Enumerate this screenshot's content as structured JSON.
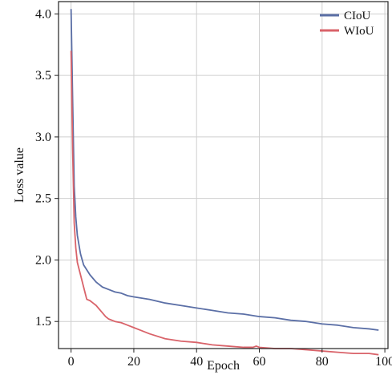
{
  "chart_data": {
    "type": "line",
    "title": "",
    "xlabel": "Epoch",
    "ylabel": "Loss value",
    "xlim": [
      -4,
      101
    ],
    "ylim": [
      1.28,
      4.1
    ],
    "xticks": [
      0,
      20,
      40,
      60,
      80,
      100
    ],
    "xtick_labels": [
      "0",
      "20",
      "40",
      "60",
      "80",
      "100"
    ],
    "yticks": [
      1.5,
      2.0,
      2.5,
      3.0,
      3.5,
      4.0
    ],
    "ytick_labels": [
      "1.5",
      "2.0",
      "2.5",
      "3.0",
      "3.5",
      "4.0"
    ],
    "grid": true,
    "legend": "top-right",
    "series": [
      {
        "name": "CIoU",
        "color": "#5b6fa6",
        "x": [
          0,
          0.5,
          1,
          1.5,
          2,
          3,
          4,
          5,
          6,
          7,
          8,
          9,
          10,
          12,
          14,
          16,
          18,
          20,
          25,
          30,
          35,
          40,
          45,
          50,
          55,
          60,
          65,
          70,
          75,
          80,
          85,
          90,
          95,
          98
        ],
        "y": [
          4.04,
          3.3,
          2.6,
          2.35,
          2.2,
          2.05,
          1.96,
          1.92,
          1.88,
          1.85,
          1.82,
          1.8,
          1.78,
          1.76,
          1.74,
          1.73,
          1.71,
          1.7,
          1.68,
          1.65,
          1.63,
          1.61,
          1.59,
          1.57,
          1.56,
          1.54,
          1.53,
          1.51,
          1.5,
          1.48,
          1.47,
          1.45,
          1.44,
          1.43
        ]
      },
      {
        "name": "WIoU",
        "color": "#d9636a",
        "x": [
          0,
          0.5,
          1,
          1.5,
          2,
          3,
          4,
          5,
          6,
          7,
          8,
          9,
          10,
          11,
          12,
          14,
          16,
          18,
          20,
          22,
          25,
          30,
          35,
          40,
          45,
          50,
          55,
          58,
          59,
          60,
          65,
          70,
          75,
          80,
          85,
          90,
          95,
          98
        ],
        "y": [
          3.7,
          2.9,
          2.3,
          2.1,
          1.98,
          1.88,
          1.78,
          1.68,
          1.67,
          1.65,
          1.63,
          1.6,
          1.57,
          1.54,
          1.52,
          1.5,
          1.49,
          1.47,
          1.45,
          1.43,
          1.4,
          1.36,
          1.34,
          1.33,
          1.31,
          1.3,
          1.29,
          1.29,
          1.3,
          1.29,
          1.28,
          1.28,
          1.27,
          1.26,
          1.25,
          1.24,
          1.24,
          1.23
        ]
      }
    ]
  }
}
